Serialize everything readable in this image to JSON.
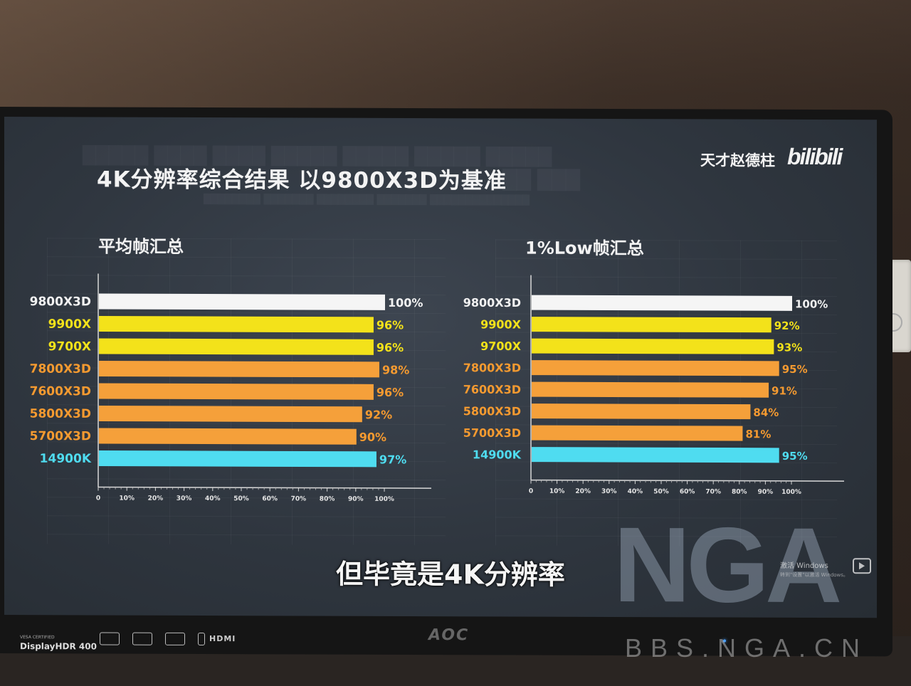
{
  "slide": {
    "title": "4K分辨率综合结果 以9800X3D为基准",
    "author": "天才赵德柱",
    "site_logo": "bilibili",
    "caption": "但毕竟是4K分辨率",
    "windows_activate": "激活 Windows",
    "windows_activate_hint": "转到\"设置\"以激活 Windows。",
    "watermark": "NGA"
  },
  "monitor": {
    "hdr_badge_top": "VESA CERTIFIED",
    "hdr_badge": "DisplayHDR 400",
    "port_label": "HDMI",
    "brand": "AOC"
  },
  "bbs_watermark": "BBS.NGA.CN",
  "colors": {
    "white": "#f5f5f5",
    "yellow": "#f3e21a",
    "orange": "#f5a03a",
    "cyan": "#4fdcf0",
    "label_white": "#f2f2f2",
    "label_yellow": "#f3e21a",
    "label_orange": "#f59a30",
    "label_cyan": "#4fdcf0"
  },
  "chart_data": [
    {
      "type": "bar",
      "orientation": "horizontal",
      "title": "平均帧汇总",
      "categories": [
        "9800X3D",
        "9900X",
        "9700X",
        "7800X3D",
        "7600X3D",
        "5800X3D",
        "5700X3D",
        "14900K"
      ],
      "values": [
        100,
        96,
        96,
        98,
        96,
        92,
        90,
        97
      ],
      "value_labels": [
        "100%",
        "96%",
        "96%",
        "98%",
        "96%",
        "92%",
        "90%",
        "97%"
      ],
      "bar_colors": [
        "white",
        "yellow",
        "yellow",
        "orange",
        "orange",
        "orange",
        "orange",
        "cyan"
      ],
      "xlim": [
        0,
        100
      ],
      "xticks": [
        "0",
        "10%",
        "20%",
        "30%",
        "40%",
        "50%",
        "60%",
        "70%",
        "80%",
        "90%",
        "100%"
      ],
      "grid": false
    },
    {
      "type": "bar",
      "orientation": "horizontal",
      "title": "1%Low帧汇总",
      "categories": [
        "9800X3D",
        "9900X",
        "9700X",
        "7800X3D",
        "7600X3D",
        "5800X3D",
        "5700X3D",
        "14900K"
      ],
      "values": [
        100,
        92,
        93,
        95,
        91,
        84,
        81,
        95
      ],
      "value_labels": [
        "100%",
        "92%",
        "93%",
        "95%",
        "91%",
        "84%",
        "81%",
        "95%"
      ],
      "bar_colors": [
        "white",
        "yellow",
        "yellow",
        "orange",
        "orange",
        "orange",
        "orange",
        "cyan"
      ],
      "xlim": [
        0,
        100
      ],
      "xticks": [
        "0",
        "10%",
        "20%",
        "30%",
        "40%",
        "50%",
        "60%",
        "70%",
        "80%",
        "90%",
        "100%"
      ],
      "grid": false
    }
  ]
}
